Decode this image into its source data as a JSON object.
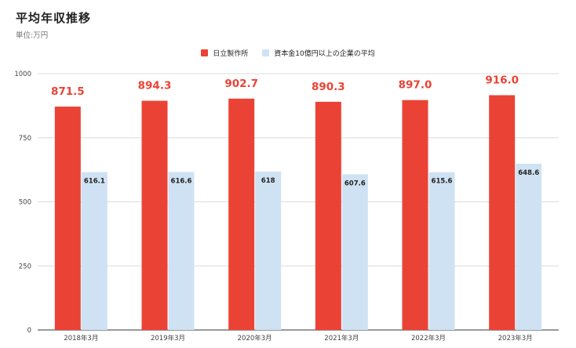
{
  "title": "平均年収推移",
  "subtitle": "単位:万円",
  "chart_data": {
    "type": "bar",
    "categories": [
      "2018年3月",
      "2019年3月",
      "2020年3月",
      "2021年3月",
      "2022年3月",
      "2023年3月"
    ],
    "series": [
      {
        "name": "日立製作所",
        "values": [
          871.5,
          894.3,
          902.7,
          890.3,
          897.0,
          916.0
        ],
        "labels": [
          "871.5",
          "894.3",
          "902.7",
          "890.3",
          "897.0",
          "916.0"
        ],
        "color": "#ea4335"
      },
      {
        "name": "資本金10億円以上の企業の平均",
        "values": [
          616.1,
          616.6,
          618,
          607.6,
          615.6,
          648.6
        ],
        "labels": [
          "616.1",
          "616.6",
          "618",
          "607.6",
          "615.6",
          "648.6"
        ],
        "color": "#cfe2f3"
      }
    ],
    "ylim": [
      0,
      1000
    ],
    "yticks": [
      "0",
      "250",
      "500",
      "750",
      "1000"
    ],
    "ytick_values": [
      0,
      250,
      500,
      750,
      1000
    ],
    "grid": true,
    "legend_position": "top-center"
  }
}
